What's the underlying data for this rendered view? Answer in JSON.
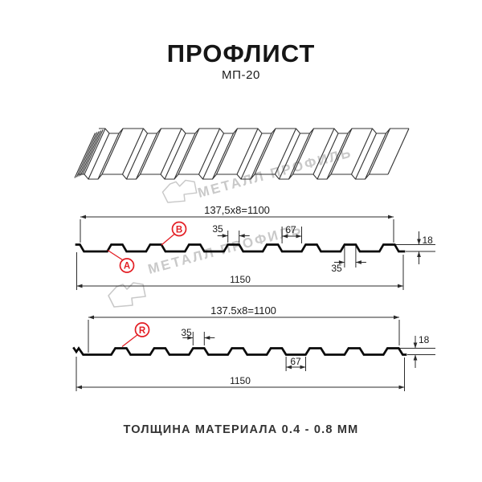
{
  "header": {
    "title": "ПРОФЛИСТ",
    "subtitle": "МП-20"
  },
  "watermark": {
    "brand_text": "МЕТАЛЛ ПРОФИЛЬ"
  },
  "drawing": {
    "profile_top": {
      "pitch_formula": "137,5x8=1100",
      "overall_width": "1150",
      "crest_width": "35",
      "valley_width": "67",
      "height": "18",
      "base_width": "35",
      "label_a": "A",
      "label_b": "B"
    },
    "profile_bottom": {
      "pitch_formula": "137.5x8=1100",
      "overall_width": "1150",
      "crest_width": "35",
      "valley_width": "67",
      "height": "18",
      "label_r": "R"
    }
  },
  "footer": {
    "thickness_note": "ТОЛЩИНА МАТЕРИАЛА 0.4 - 0.8 ММ"
  },
  "colors": {
    "accent_red": "#e31e24",
    "line_dark": "#2b2b2b",
    "profile_black": "#0a0a0a",
    "watermark_gray": "#c9c9c9"
  }
}
